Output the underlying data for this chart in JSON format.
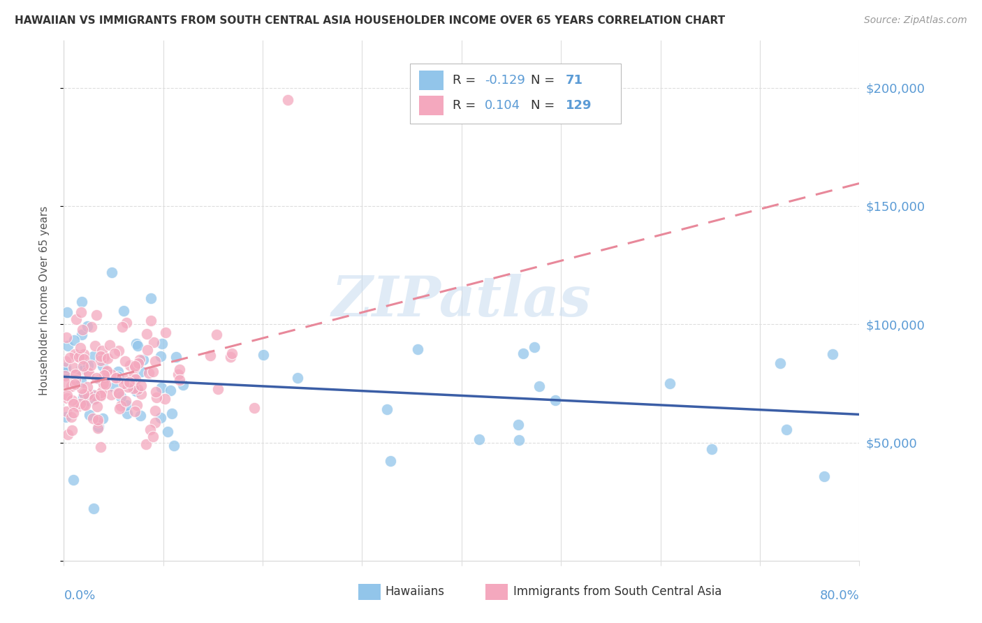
{
  "title": "HAWAIIAN VS IMMIGRANTS FROM SOUTH CENTRAL ASIA HOUSEHOLDER INCOME OVER 65 YEARS CORRELATION CHART",
  "source": "Source: ZipAtlas.com",
  "ylabel": "Householder Income Over 65 years",
  "xmin": 0.0,
  "xmax": 0.8,
  "ymin": 0,
  "ymax": 220000,
  "yticks": [
    0,
    50000,
    100000,
    150000,
    200000
  ],
  "background_color": "#ffffff",
  "grid_color": "#dddddd",
  "hawaiians_color": "#92C5EA",
  "immigrants_color": "#F4A8BE",
  "hawaiians_line_color": "#3B5EA6",
  "immigrants_line_color": "#E8889A",
  "axis_label_color": "#5B9BD5",
  "legend_R_label_color": "#333333",
  "legend_val_color": "#5B9BD5",
  "legend_R1": "-0.129",
  "legend_N1": "71",
  "legend_R2": "0.104",
  "legend_N2": "129",
  "watermark": "ZIPatlas",
  "hawaiians_N": 71,
  "immigrants_N": 129,
  "title_fontsize": 11,
  "source_fontsize": 10,
  "ylabel_fontsize": 11,
  "legend_fontsize": 13,
  "ytick_fontsize": 13,
  "xlabel_fontsize": 13
}
